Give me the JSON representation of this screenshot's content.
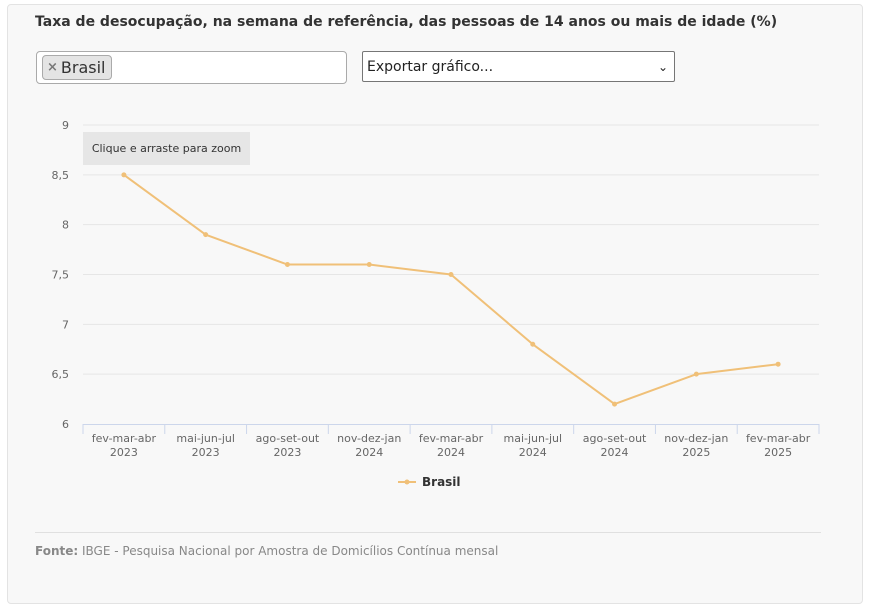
{
  "title": "Taxa de desocupação, na semana de referência, das pessoas de 14 anos ou mais de idade (%)",
  "selector": {
    "tag_label": "Brasil",
    "remove_symbol": "×"
  },
  "export": {
    "label": "Exportar gráfico...",
    "chevron": "⌄"
  },
  "zoom_hint": "Clique e arraste para zoom",
  "source": {
    "label": "Fonte:",
    "text": " IBGE - Pesquisa Nacional por Amostra de Domicílios Contínua mensal"
  },
  "colors": {
    "series": "#f0c078",
    "grid": "#e6e6e6",
    "axis": "#ccd6eb"
  },
  "chart_data": {
    "type": "line",
    "title": "",
    "xlabel": "",
    "ylabel": "",
    "ylim": [
      6,
      9
    ],
    "yticks": [
      "6",
      "6,5",
      "7",
      "7,5",
      "8",
      "8,5",
      "9"
    ],
    "ytick_values": [
      6,
      6.5,
      7,
      7.5,
      8,
      8.5,
      9
    ],
    "categories": [
      [
        "fev-mar-abr",
        "2023"
      ],
      [
        "mai-jun-jul",
        "2023"
      ],
      [
        "ago-set-out",
        "2023"
      ],
      [
        "nov-dez-jan",
        "2024"
      ],
      [
        "fev-mar-abr",
        "2024"
      ],
      [
        "mai-jun-jul",
        "2024"
      ],
      [
        "ago-set-out",
        "2024"
      ],
      [
        "nov-dez-jan",
        "2025"
      ],
      [
        "fev-mar-abr",
        "2025"
      ]
    ],
    "series": [
      {
        "name": "Brasil",
        "values": [
          8.5,
          7.9,
          7.6,
          7.6,
          7.5,
          6.8,
          6.2,
          6.5,
          6.6
        ]
      }
    ],
    "legend": "bottom-center",
    "grid": true
  }
}
